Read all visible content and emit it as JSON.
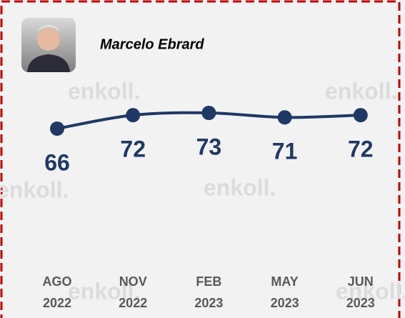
{
  "chart_data": {
    "type": "line",
    "title": "Marcelo Ebrard",
    "watermark": "enkoll.",
    "categories": [
      [
        "AGO",
        "2022"
      ],
      [
        "NOV",
        "2022"
      ],
      [
        "FEB",
        "2023"
      ],
      [
        "MAY",
        "2023"
      ],
      [
        "JUN",
        "2023"
      ]
    ],
    "series": [
      {
        "color": "#1f3864",
        "values": [
          66,
          72,
          73,
          71,
          72
        ]
      }
    ]
  }
}
